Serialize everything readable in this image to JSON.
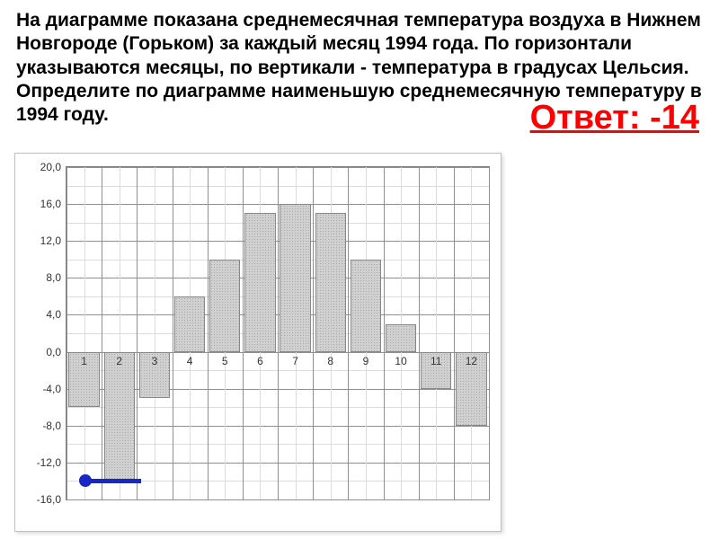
{
  "text": {
    "problem": "На диаграмме показана среднемесячная температура воздуха в Нижнем Новгороде (Горьком) за каждый месяц 1994 года. По горизонтали указываются месяцы, по вертикали - температура в градусах Цельсия. Определите по диаграмме наименьшую среднемесячную температуру в 1994 году.",
    "answer": "Ответ: -14"
  },
  "chart": {
    "type": "bar",
    "categories": [
      "1",
      "2",
      "3",
      "4",
      "5",
      "6",
      "7",
      "8",
      "9",
      "10",
      "11",
      "12"
    ],
    "values": [
      -6,
      -14,
      -5,
      6,
      10,
      15,
      16,
      15,
      10,
      3,
      -4,
      -8
    ],
    "bar_fill": "#d0d0d0",
    "bar_border": "#888888",
    "bar_pattern_dot": "#aaaaaa",
    "ylim": [
      -16,
      20
    ],
    "ytick_step": 4,
    "ytick_labels": [
      "-16,0",
      "-12,0",
      "-8,0",
      "-4,0",
      "0,0",
      "4,0",
      "8,0",
      "12,0",
      "16,0",
      "20,0"
    ],
    "background_color": "#ffffff",
    "grid_major_color": "#909090",
    "grid_minor_color": "#dcdcdc",
    "border_color": "#808080",
    "label_fontsize": 12,
    "bar_width_ratio": 0.88,
    "min_marker_color": "#1928c4",
    "min_value": -14
  },
  "colors": {
    "answer_color": "#ff0000",
    "text_color": "#000000"
  }
}
